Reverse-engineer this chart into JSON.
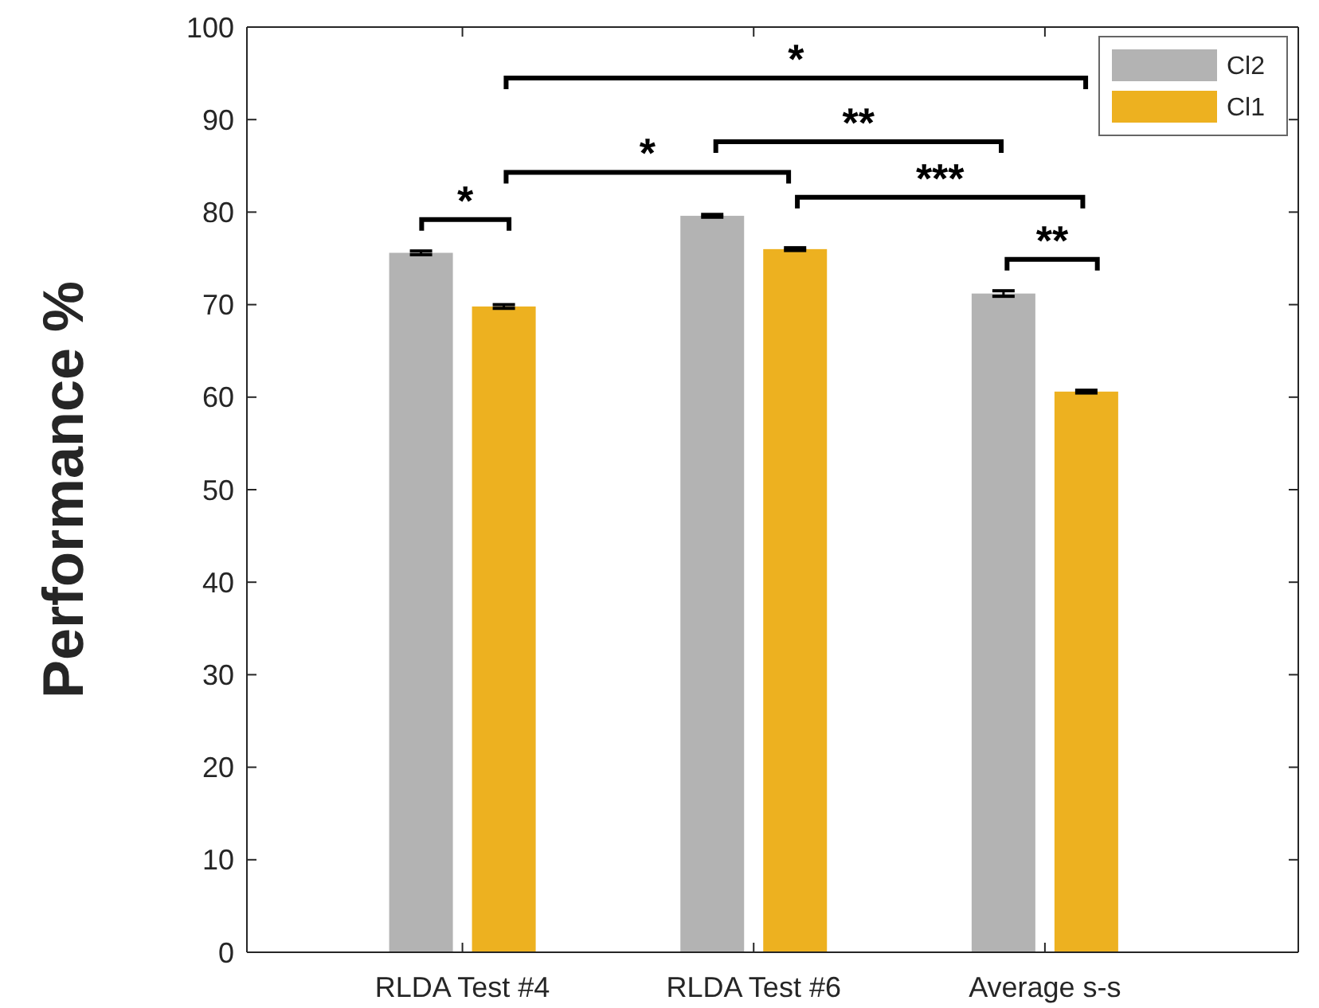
{
  "chart_data": {
    "type": "bar",
    "ylabel": "Performance %",
    "categories": [
      "RLDA Test #4",
      "RLDA Test #6",
      "Average s-s"
    ],
    "series": [
      {
        "name": "Cl2",
        "color": "#b3b3b3",
        "values": [
          75.6,
          79.6,
          71.2
        ],
        "errors": [
          0.2,
          0.15,
          0.3
        ]
      },
      {
        "name": "Cl1",
        "color": "#edb120",
        "values": [
          69.8,
          76.0,
          60.6
        ],
        "errors": [
          0.2,
          0.15,
          0.15
        ]
      }
    ],
    "ylim": [
      0,
      100
    ],
    "yticks": [
      0,
      10,
      20,
      30,
      40,
      50,
      60,
      70,
      80,
      90,
      100
    ],
    "legend": "top right",
    "annotations": [
      "*",
      "**",
      "*",
      "***",
      "*",
      "**"
    ]
  }
}
